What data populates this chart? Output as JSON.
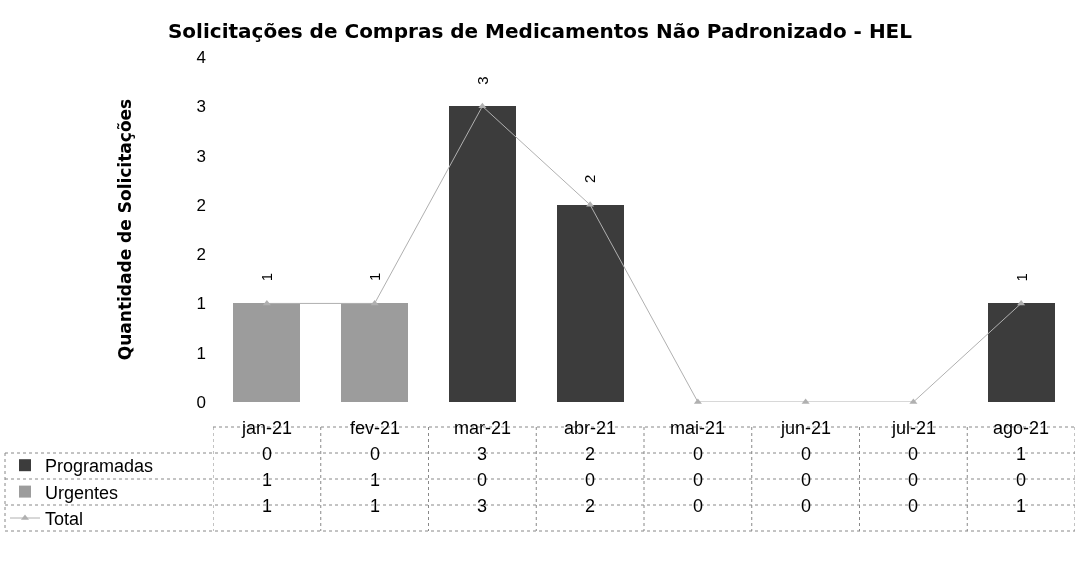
{
  "chart_data": {
    "type": "bar",
    "stacked": true,
    "title": "Solicitações de Compras de Medicamentos Não Padronizado - HEL",
    "ylabel": "Quantidade de Solicitações",
    "categories": [
      "jan-21",
      "fev-21",
      "mar-21",
      "abr-21",
      "mai-21",
      "jun-21",
      "jul-21",
      "ago-21"
    ],
    "series": [
      {
        "name": "Programadas",
        "color": "#3c3c3c",
        "values": [
          0,
          0,
          3,
          2,
          0,
          0,
          0,
          1
        ]
      },
      {
        "name": "Urgentes",
        "color": "#9c9c9c",
        "values": [
          1,
          1,
          0,
          0,
          0,
          0,
          0,
          0
        ]
      },
      {
        "name": "Total",
        "type": "line",
        "color": "#b0b0b0",
        "marker": "triangle",
        "line_style": "solid",
        "values": [
          1,
          1,
          3,
          2,
          0,
          0,
          0,
          1
        ]
      }
    ],
    "ylim": [
      0,
      3.5
    ],
    "yticks": [
      0,
      {
        "value": 0.5,
        "label": "1"
      },
      1,
      {
        "value": 1.5,
        "label": "2"
      },
      2,
      {
        "value": 2.5,
        "label": "3"
      },
      3,
      {
        "value": 3.5,
        "label": "4"
      }
    ],
    "annotations": [
      {
        "text": "1",
        "x": "jan-21",
        "y": 1
      },
      {
        "text": "1",
        "x": "fev-21",
        "y": 1
      },
      {
        "text": "3",
        "x": "mar-21",
        "y": 3
      },
      {
        "text": "2",
        "x": "abr-21",
        "y": 2
      },
      {
        "text": "1",
        "x": "ago-21",
        "y": 1
      }
    ],
    "grid": false,
    "legend": "bottom",
    "data_labels": true
  }
}
